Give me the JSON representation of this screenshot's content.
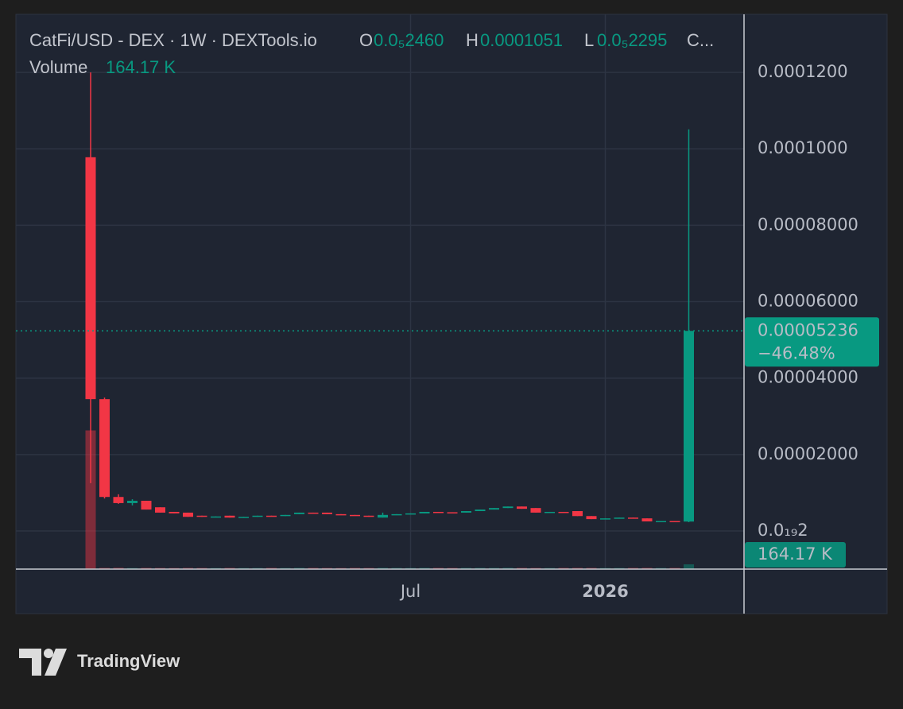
{
  "chart_data": {
    "type": "candlestick",
    "title": "CatFi/USD - DEX · 1W · DEXTools.io",
    "ohlc_legend": [
      {
        "key": "O",
        "label": "0.0₅2460"
      },
      {
        "key": "H",
        "label": "0.0001051"
      },
      {
        "key": "L",
        "label": "0.0₅2295"
      },
      {
        "key": "C..."
      }
    ],
    "categories": [
      null,
      null,
      null,
      null,
      null,
      null,
      null,
      null,
      null,
      null,
      null,
      null,
      null,
      null,
      null,
      null,
      null,
      null,
      null,
      null,
      null,
      null,
      null,
      "Jul",
      null,
      null,
      null,
      null,
      null,
      null,
      null,
      null,
      null,
      null,
      null,
      null,
      null,
      "2026",
      null,
      null,
      null,
      null,
      null,
      null
    ],
    "open": [
      9.78e-05,
      3.45e-05,
      8.9e-06,
      7.3e-06,
      7.9e-06,
      6.2e-06,
      5e-06,
      4.8e-06,
      4e-06,
      3.7e-06,
      4e-06,
      3.5e-06,
      3.7e-06,
      4e-06,
      3.9e-06,
      4.4e-06,
      4.8e-06,
      4.8e-06,
      4.4e-06,
      4.2e-06,
      4e-06,
      3.5e-06,
      4.2e-06,
      4.4e-06,
      4.6e-06,
      5e-06,
      4.9e-06,
      4.8e-06,
      5.2e-06,
      5.6e-06,
      6e-06,
      6.4e-06,
      6e-06,
      4.8e-06,
      5e-06,
      5.2e-06,
      3.9e-06,
      3.1e-06,
      3.3e-06,
      3.5e-06,
      3.3e-06,
      2.5e-06,
      2.6e-06,
      2.46e-06
    ],
    "high": [
      0.00012,
      3.49e-05,
      9.6e-06,
      8.3e-06,
      7.9e-06,
      6.2e-06,
      5e-06,
      4.8e-06,
      4e-06,
      3.8e-06,
      4e-06,
      3.7e-06,
      4e-06,
      4e-06,
      4.2e-06,
      4.8e-06,
      4.8e-06,
      4.8e-06,
      4.4e-06,
      4.2e-06,
      4e-06,
      4.8e-06,
      4.4e-06,
      4.6e-06,
      5e-06,
      5e-06,
      4.9e-06,
      5.2e-06,
      5.6e-06,
      6e-06,
      6.4e-06,
      6.4e-06,
      6e-06,
      5e-06,
      5e-06,
      5.2e-06,
      3.9e-06,
      3.3e-06,
      3.5e-06,
      3.5e-06,
      3.3e-06,
      2.6e-06,
      2.6e-06,
      0.0001051
    ],
    "low": [
      1.25e-05,
      8.5e-06,
      7.1e-06,
      6.7e-06,
      5.6e-06,
      4.8e-06,
      4.6e-06,
      3.7e-06,
      3.7e-06,
      3.7e-06,
      3.5e-06,
      3.5e-06,
      3.7e-06,
      3.9e-06,
      3.9e-06,
      4.4e-06,
      4.7e-06,
      4.4e-06,
      4.2e-06,
      4e-06,
      3.7e-06,
      3.5e-06,
      4.2e-06,
      4.4e-06,
      4.6e-06,
      4.9e-06,
      4.8e-06,
      4.8e-06,
      5.2e-06,
      5.6e-06,
      6e-06,
      5.8e-06,
      4.8e-06,
      4.8e-06,
      4.9e-06,
      3.9e-06,
      3.1e-06,
      3.1e-06,
      3.3e-06,
      3.3e-06,
      2.5e-06,
      2.5e-06,
      2.4e-06,
      2.295e-06
    ],
    "close": [
      3.45e-05,
      8.9e-06,
      7.3e-06,
      7.9e-06,
      5.6e-06,
      4.8e-06,
      4.6e-06,
      3.7e-06,
      3.7e-06,
      3.8e-06,
      3.5e-06,
      3.7e-06,
      4e-06,
      3.9e-06,
      4.2e-06,
      4.8e-06,
      4.7e-06,
      4.4e-06,
      4.2e-06,
      4e-06,
      3.7e-06,
      4.2e-06,
      4.4e-06,
      4.6e-06,
      5e-06,
      4.9e-06,
      4.8e-06,
      5.2e-06,
      5.6e-06,
      6e-06,
      6.4e-06,
      5.8e-06,
      4.8e-06,
      5e-06,
      4.9e-06,
      3.9e-06,
      3.1e-06,
      3.3e-06,
      3.5e-06,
      3.3e-06,
      2.5e-06,
      2.6e-06,
      2.4e-06,
      5.236e-05
    ],
    "change_label": "−46.48%",
    "volume": {
      "name": "Volume",
      "values": [
        4760000,
        40000,
        45000,
        35000,
        40000,
        38000,
        36000,
        40000,
        38000,
        35000,
        40000,
        36000,
        38000,
        40000,
        37000,
        42000,
        40000,
        38000,
        36000,
        40000,
        38000,
        42000,
        40000,
        38000,
        42000,
        40000,
        38000,
        40000,
        42000,
        40000,
        44000,
        40000,
        38000,
        36000,
        40000,
        42000,
        40000,
        36000,
        38000,
        40000,
        42000,
        38000,
        40000,
        164170
      ],
      "value_labels": [
        null,
        null,
        null,
        null,
        null,
        null,
        null,
        null,
        null,
        null,
        null,
        null,
        null,
        null,
        null,
        null,
        null,
        null,
        null,
        null,
        null,
        null,
        null,
        null,
        null,
        null,
        null,
        null,
        null,
        null,
        null,
        null,
        null,
        null,
        null,
        null,
        null,
        null,
        null,
        null,
        null,
        null,
        null,
        "164.17 K"
      ]
    },
    "ylim": [
      -9.98e-06,
      0.0001352
    ],
    "yticks": [
      {
        "value": 0.00012,
        "label": "0.0001200"
      },
      {
        "value": 0.0001,
        "label": "0.0001000"
      },
      {
        "value": 8e-05,
        "label": "0.00008000"
      },
      {
        "value": 6e-05,
        "label": "0.00006000"
      },
      {
        "value": 4e-05,
        "label": "0.00004000"
      },
      {
        "value": 2e-05,
        "label": "0.00002000"
      },
      {
        "value": 2e-20,
        "label": "0.0₁₉2"
      }
    ],
    "grid": true,
    "up_color": "#089981",
    "down_color": "#f23645"
  },
  "footer": {
    "brand": "TradingView"
  }
}
